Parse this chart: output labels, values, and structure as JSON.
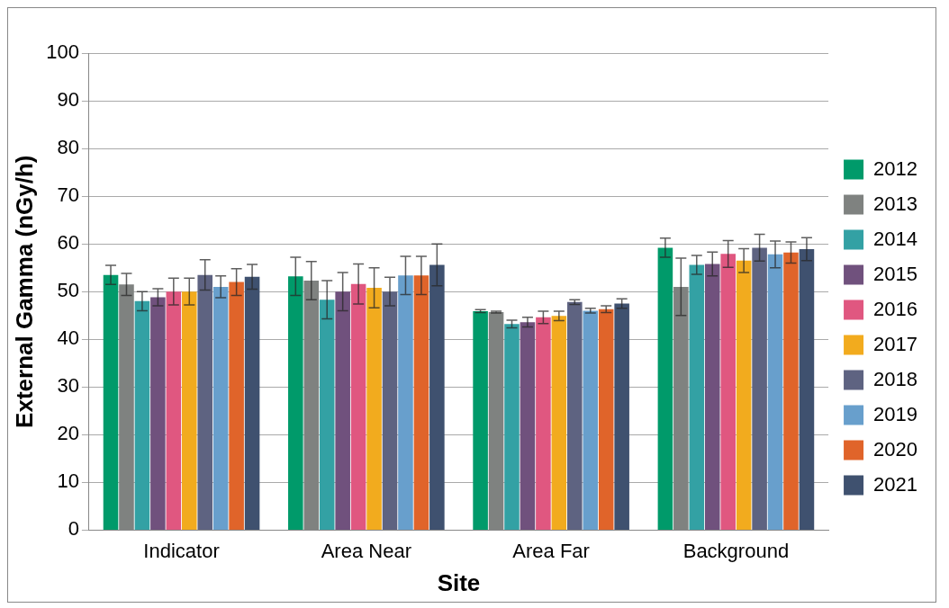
{
  "chart_data": {
    "type": "bar",
    "xlabel": "Site",
    "ylabel": "External Gamma (nGy/h)",
    "categories": [
      "Indicator",
      "Area Near",
      "Area Far",
      "Background"
    ],
    "series": [
      {
        "name": "2012",
        "color": "#009a6a",
        "values": [
          53.5,
          53.2,
          45.9,
          59.2
        ],
        "errors": [
          2,
          4,
          0.3,
          2
        ]
      },
      {
        "name": "2013",
        "color": "#7f8280",
        "values": [
          51.5,
          52.3,
          45.7,
          51
        ],
        "errors": [
          2.3,
          4,
          0.2,
          6
        ]
      },
      {
        "name": "2014",
        "color": "#33a1a4",
        "values": [
          48,
          48.3,
          43.2,
          55.6
        ],
        "errors": [
          2,
          4,
          0.8,
          2
        ]
      },
      {
        "name": "2015",
        "color": "#70517d",
        "values": [
          48.8,
          50,
          43.6,
          55.8
        ],
        "errors": [
          1.8,
          4,
          1,
          2.5
        ]
      },
      {
        "name": "2016",
        "color": "#e05780",
        "values": [
          50,
          51.6,
          44.6,
          57.9
        ],
        "errors": [
          2.8,
          4.2,
          1.3,
          2.8
        ]
      },
      {
        "name": "2017",
        "color": "#f2ab1e",
        "values": [
          50,
          50.8,
          44.9,
          56.5
        ],
        "errors": [
          2.8,
          4.2,
          1,
          2.5
        ]
      },
      {
        "name": "2018",
        "color": "#5e6381",
        "values": [
          53.5,
          50,
          47.8,
          59.2
        ],
        "errors": [
          3.2,
          3,
          0.5,
          2.8
        ]
      },
      {
        "name": "2019",
        "color": "#689fcc",
        "values": [
          51,
          53.4,
          46,
          57.8
        ],
        "errors": [
          2.3,
          4,
          0.5,
          2.8
        ]
      },
      {
        "name": "2020",
        "color": "#e0642a",
        "values": [
          52,
          53.4,
          46.3,
          58.2
        ],
        "errors": [
          2.8,
          4,
          0.7,
          2.2
        ]
      },
      {
        "name": "2021",
        "color": "#3f516f",
        "values": [
          53.1,
          55.6,
          47.5,
          58.9
        ],
        "errors": [
          2.6,
          4.4,
          1,
          2.4
        ]
      }
    ],
    "ylim": [
      0,
      100
    ],
    "yticks": [
      0,
      10,
      20,
      30,
      40,
      50,
      60,
      70,
      80,
      90,
      100
    ],
    "grid": "y",
    "legend": "right"
  }
}
